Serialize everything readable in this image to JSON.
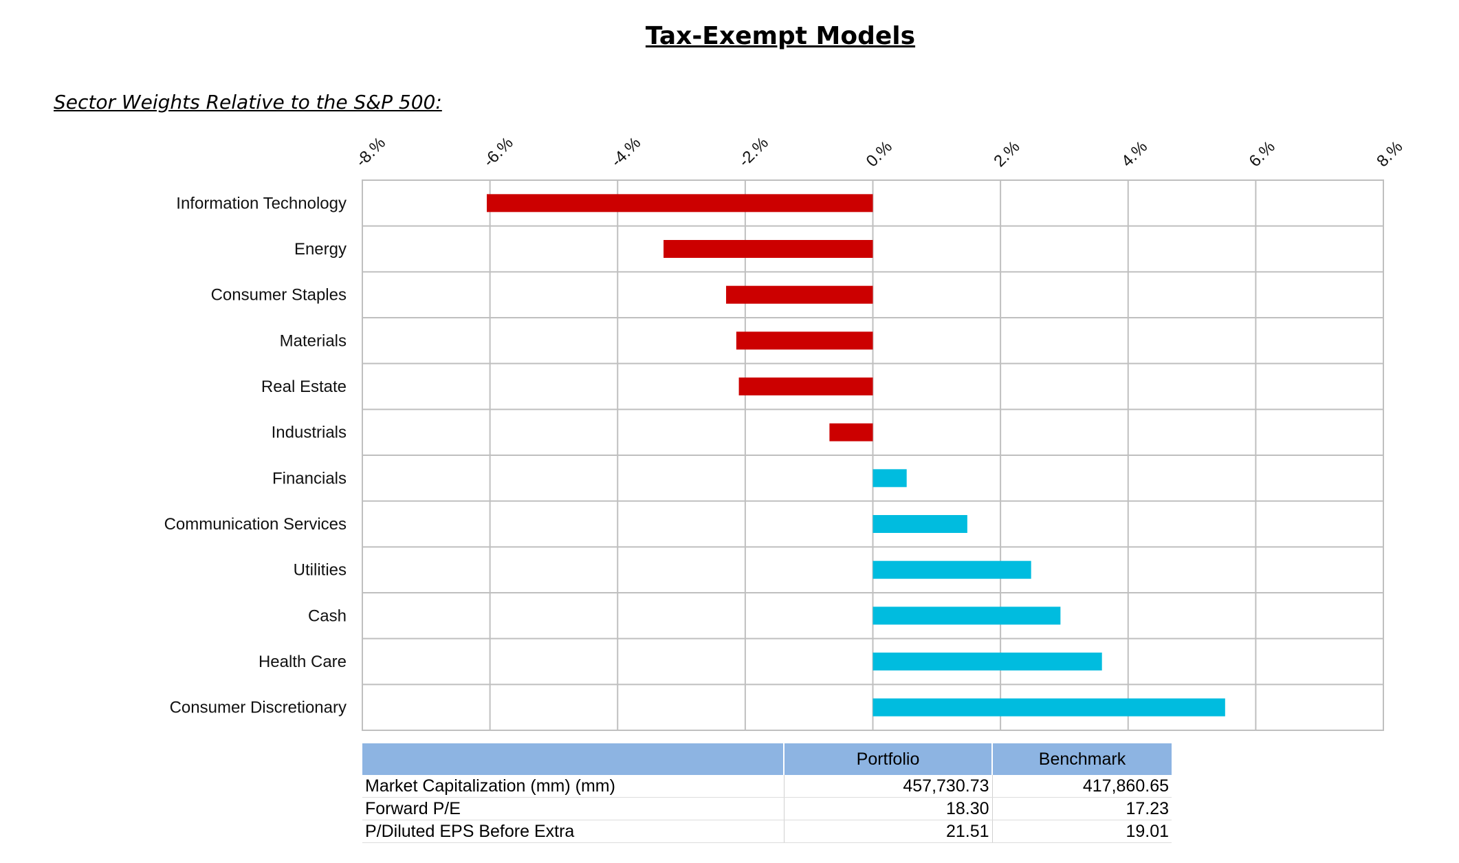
{
  "title": "Tax-Exempt Models",
  "subtitle": "Sector Weights Relative to the S&P 500:",
  "chart_data": {
    "type": "bar",
    "orientation": "horizontal",
    "categories": [
      "Information Technology",
      "Energy",
      "Consumer Staples",
      "Materials",
      "Real Estate",
      "Industrials",
      "Financials",
      "Communication Services",
      "Utilities",
      "Cash",
      "Health Care",
      "Consumer Discretionary"
    ],
    "values": [
      -6.05,
      -3.28,
      -2.3,
      -2.14,
      -2.1,
      -0.68,
      0.53,
      1.48,
      2.48,
      2.94,
      3.59,
      5.52
    ],
    "xlim": [
      -8,
      8
    ],
    "xticks": [
      -8,
      -6,
      -4,
      -2,
      0,
      2,
      4,
      6,
      8
    ],
    "xtick_labels": [
      "-8.%",
      "-6.%",
      "-4.%",
      "-2.%",
      "0.%",
      "2.%",
      "4.%",
      "6.%",
      "8.%"
    ],
    "xaxis_position": "top",
    "grid": true,
    "colors": {
      "negative": "#cc0000",
      "positive": "#00bcdf",
      "grid": "#bfbfbf"
    }
  },
  "table": {
    "header_bg": "#8db4e2",
    "columns": [
      "",
      "Portfolio",
      "Benchmark"
    ],
    "rows": [
      {
        "label": "Market Capitalization (mm) (mm)",
        "portfolio": "457,730.73",
        "benchmark": "417,860.65"
      },
      {
        "label": "Forward P/E",
        "portfolio": "18.30",
        "benchmark": "17.23"
      },
      {
        "label": "P/Diluted EPS Before Extra",
        "portfolio": "21.51",
        "benchmark": "19.01"
      }
    ]
  }
}
